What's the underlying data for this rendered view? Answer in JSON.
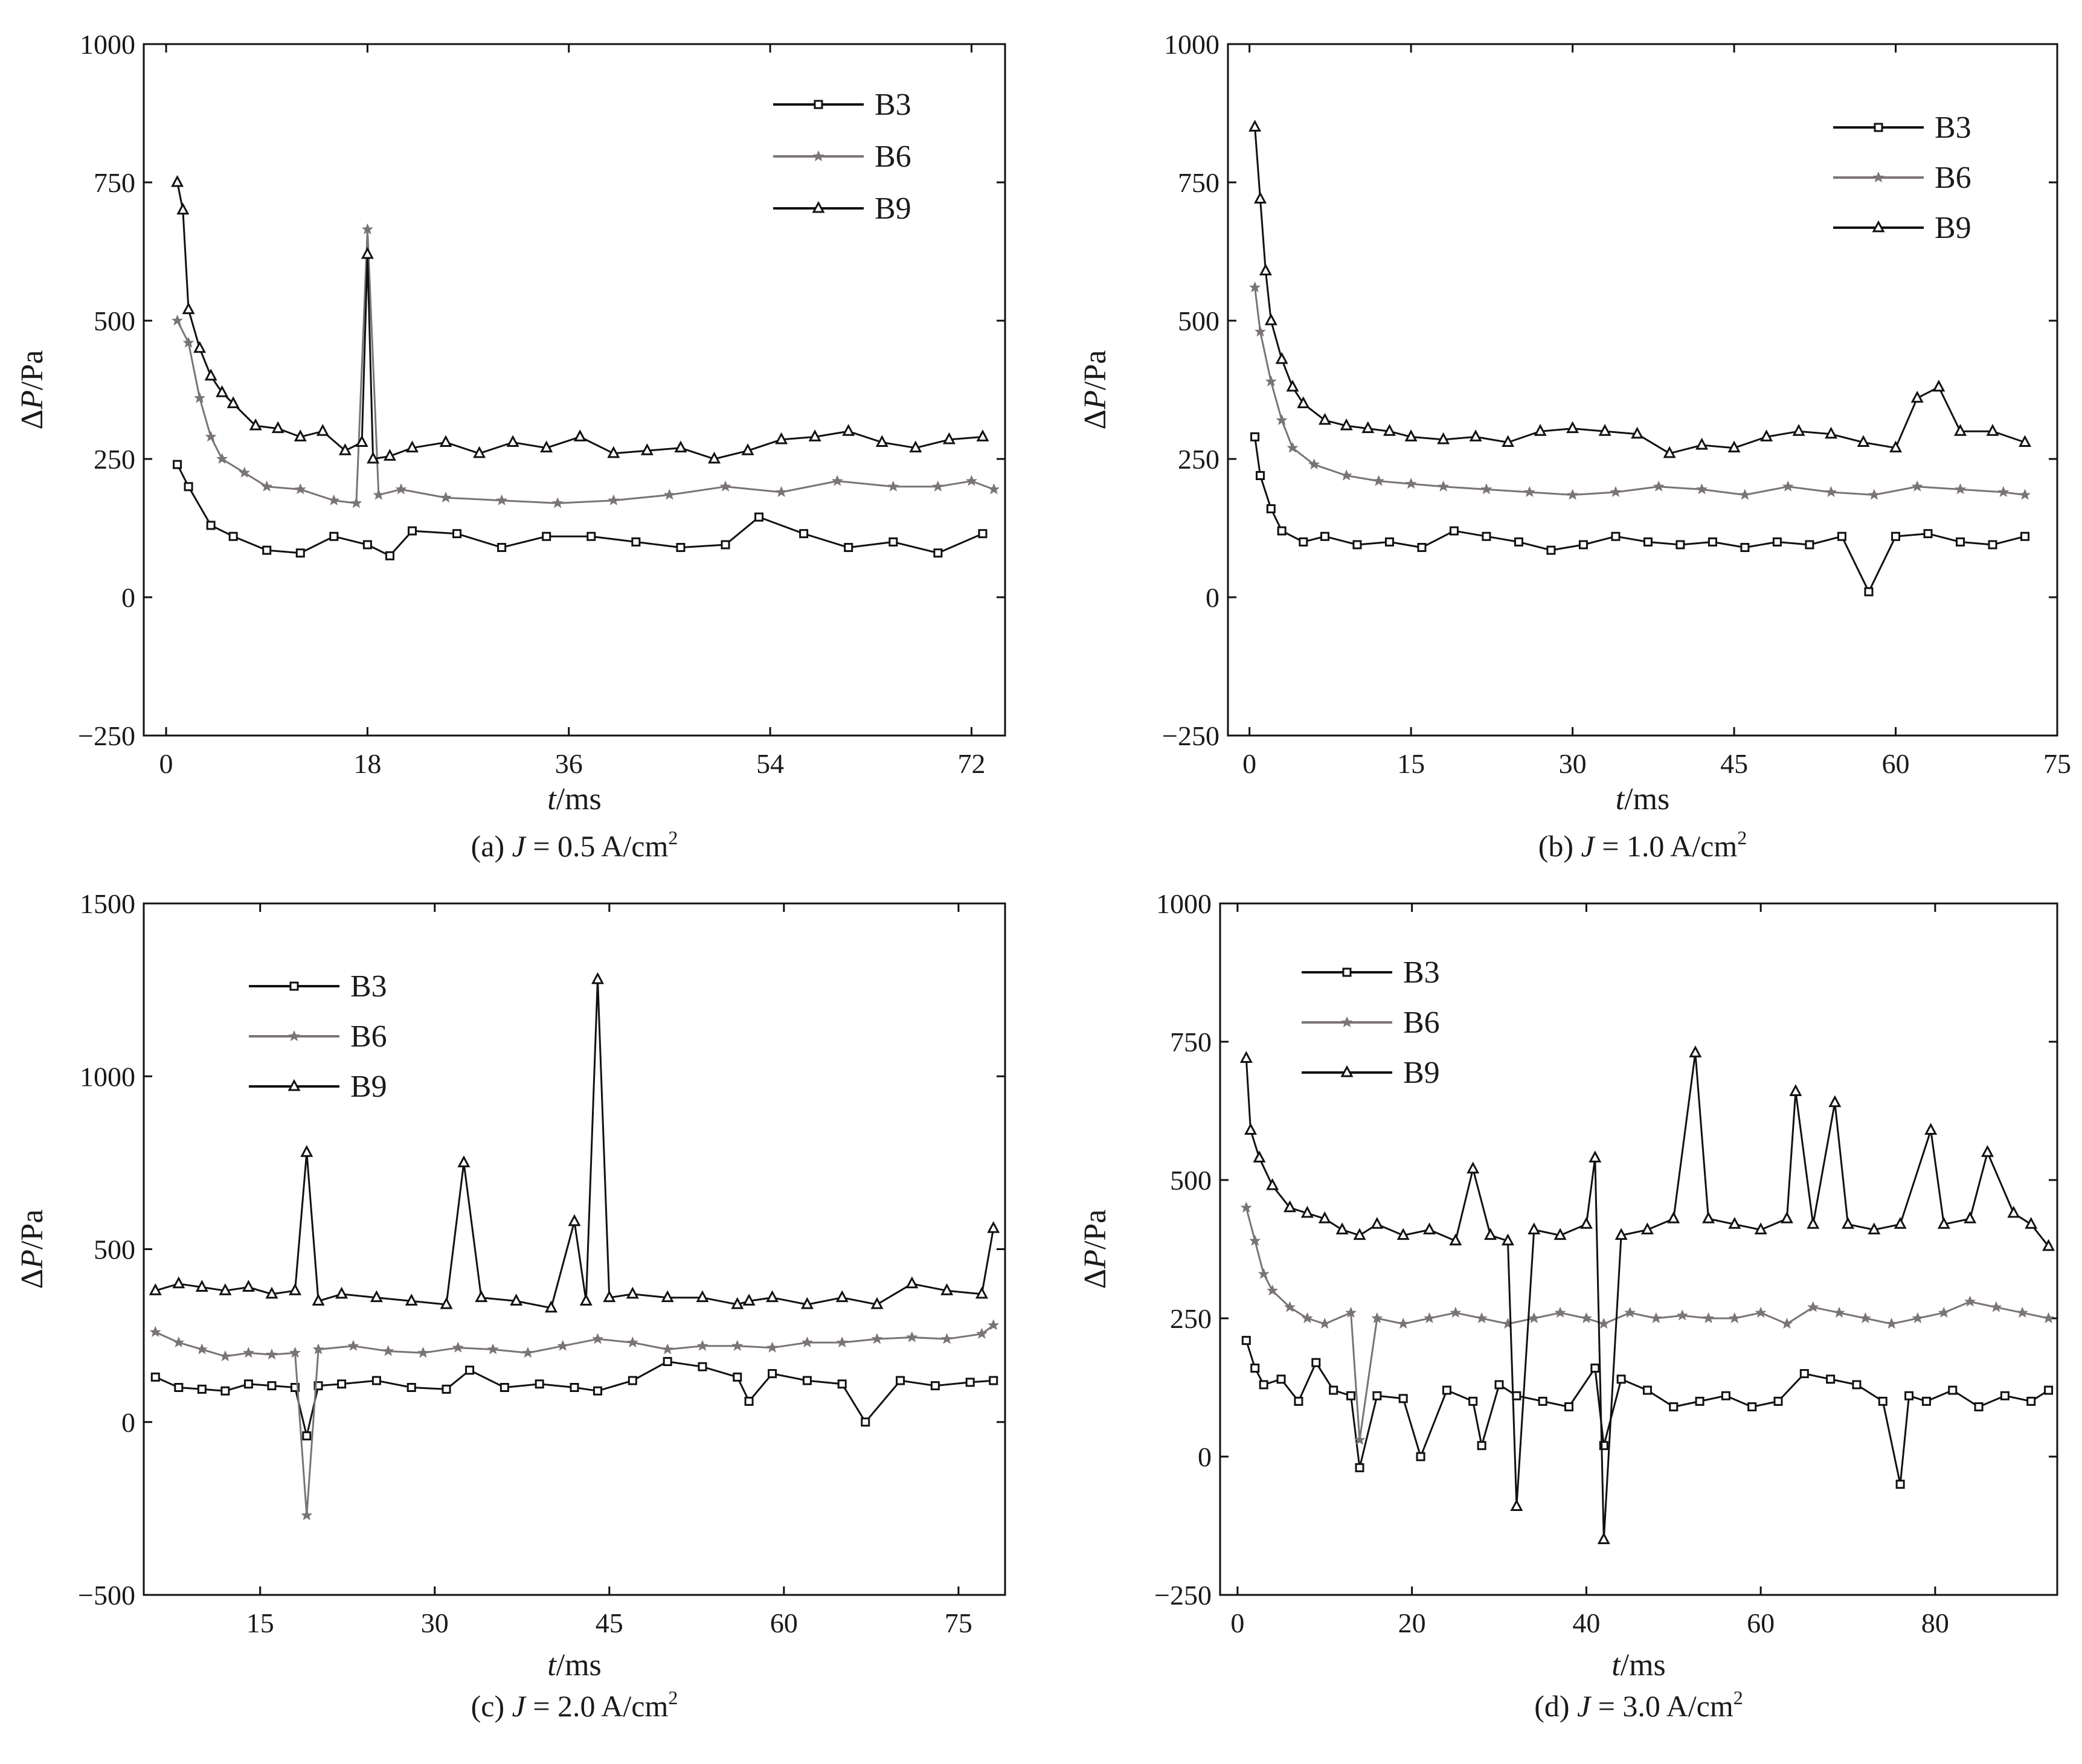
{
  "chart_data": [
    {
      "panel": "a",
      "type": "line",
      "caption": "(a) J = 0.5 A/cm²",
      "caption_parts": {
        "prefix": "(a) ",
        "var": "J",
        "rest": " = 0.5 A/cm",
        "sup": "2"
      },
      "xlabel": "t/ms",
      "ylabel": "ΔP/Pa",
      "xlim": [
        -2,
        75
      ],
      "ylim": [
        -250,
        1000
      ],
      "xticks": [
        0,
        18,
        36,
        54,
        72
      ],
      "yticks": [
        -250,
        0,
        250,
        500,
        750,
        1000
      ],
      "legend": [
        "B3",
        "B6",
        "B9"
      ],
      "legend_position": "top-right",
      "series": [
        {
          "name": "B3",
          "color": "#111111",
          "marker": "square",
          "x": [
            1,
            2,
            4,
            6,
            9,
            12,
            15,
            18,
            20,
            22,
            26,
            30,
            34,
            38,
            42,
            46,
            50,
            53,
            57,
            61,
            65,
            69,
            73
          ],
          "y": [
            240,
            200,
            130,
            110,
            85,
            80,
            110,
            95,
            75,
            120,
            115,
            90,
            110,
            110,
            100,
            90,
            95,
            145,
            115,
            90,
            100,
            80,
            115
          ]
        },
        {
          "name": "B6",
          "color": "#7a7474",
          "marker": "star",
          "x": [
            1,
            2,
            3,
            4,
            5,
            7,
            9,
            12,
            15,
            17,
            18,
            19,
            21,
            25,
            30,
            35,
            40,
            45,
            50,
            55,
            60,
            65,
            69,
            72,
            74
          ],
          "y": [
            500,
            460,
            360,
            290,
            250,
            225,
            200,
            195,
            175,
            170,
            665,
            185,
            195,
            180,
            175,
            170,
            175,
            185,
            200,
            190,
            210,
            200,
            200,
            210,
            195
          ]
        },
        {
          "name": "B9",
          "color": "#111111",
          "marker": "triangle",
          "x": [
            1,
            1.5,
            2,
            3,
            4,
            5,
            6,
            8,
            10,
            12,
            14,
            16,
            17.5,
            18,
            18.5,
            20,
            22,
            25,
            28,
            31,
            34,
            37,
            40,
            43,
            46,
            49,
            52,
            55,
            58,
            61,
            64,
            67,
            70,
            73
          ],
          "y": [
            750,
            700,
            520,
            450,
            400,
            370,
            350,
            310,
            305,
            290,
            300,
            265,
            280,
            620,
            250,
            255,
            270,
            280,
            260,
            280,
            270,
            290,
            260,
            265,
            270,
            250,
            265,
            285,
            290,
            300,
            280,
            270,
            285,
            290
          ]
        }
      ]
    },
    {
      "panel": "b",
      "type": "line",
      "caption": "(b) J = 1.0 A/cm²",
      "caption_parts": {
        "prefix": "(b) ",
        "var": "J",
        "rest": " = 1.0 A/cm",
        "sup": "2"
      },
      "xlabel": "t/ms",
      "ylabel": "ΔP/Pa",
      "xlim": [
        -2,
        75
      ],
      "ylim": [
        -250,
        1000
      ],
      "xticks": [
        0,
        15,
        30,
        45,
        60,
        75
      ],
      "yticks": [
        -250,
        0,
        250,
        500,
        750,
        1000
      ],
      "legend": [
        "B3",
        "B6",
        "B9"
      ],
      "legend_position": "top-right",
      "series": [
        {
          "name": "B3",
          "color": "#111111",
          "marker": "square",
          "x": [
            0.5,
            1,
            2,
            3,
            5,
            7,
            10,
            13,
            16,
            19,
            22,
            25,
            28,
            31,
            34,
            37,
            40,
            43,
            46,
            49,
            52,
            55,
            57.5,
            60,
            63,
            66,
            69,
            72
          ],
          "y": [
            290,
            220,
            160,
            120,
            100,
            110,
            95,
            100,
            90,
            120,
            110,
            100,
            85,
            95,
            110,
            100,
            95,
            100,
            90,
            100,
            95,
            110,
            10,
            110,
            115,
            100,
            95,
            110
          ]
        },
        {
          "name": "B6",
          "color": "#7a7474",
          "marker": "star",
          "x": [
            0.5,
            1,
            2,
            3,
            4,
            6,
            9,
            12,
            15,
            18,
            22,
            26,
            30,
            34,
            38,
            42,
            46,
            50,
            54,
            58,
            62,
            66,
            70,
            72
          ],
          "y": [
            560,
            480,
            390,
            320,
            270,
            240,
            220,
            210,
            205,
            200,
            195,
            190,
            185,
            190,
            200,
            195,
            185,
            200,
            190,
            185,
            200,
            195,
            190,
            185
          ]
        },
        {
          "name": "B9",
          "color": "#111111",
          "marker": "triangle",
          "x": [
            0.5,
            1,
            1.5,
            2,
            3,
            4,
            5,
            7,
            9,
            11,
            13,
            15,
            18,
            21,
            24,
            27,
            30,
            33,
            36,
            39,
            42,
            45,
            48,
            51,
            54,
            57,
            60,
            62,
            64,
            66,
            69,
            72
          ],
          "y": [
            850,
            720,
            590,
            500,
            430,
            380,
            350,
            320,
            310,
            305,
            300,
            290,
            285,
            290,
            280,
            300,
            305,
            300,
            295,
            260,
            275,
            270,
            290,
            300,
            295,
            280,
            270,
            360,
            380,
            300,
            300,
            280
          ]
        }
      ]
    },
    {
      "panel": "c",
      "type": "line",
      "caption": "(c) J = 2.0 A/cm²",
      "caption_parts": {
        "prefix": "(c) ",
        "var": "J",
        "rest": " = 2.0 A/cm",
        "sup": "2"
      },
      "xlabel": "t/ms",
      "ylabel": "ΔP/Pa",
      "xlim": [
        5,
        79
      ],
      "ylim": [
        -500,
        1500
      ],
      "xticks": [
        15,
        30,
        45,
        60,
        75
      ],
      "yticks": [
        -500,
        0,
        500,
        1000,
        1500
      ],
      "legend": [
        "B3",
        "B6",
        "B9"
      ],
      "legend_position": "top-left",
      "series": [
        {
          "name": "B3",
          "color": "#111111",
          "marker": "square",
          "x": [
            6,
            8,
            10,
            12,
            14,
            16,
            18,
            19,
            20,
            22,
            25,
            28,
            31,
            33,
            36,
            39,
            42,
            44,
            47,
            50,
            53,
            56,
            57,
            59,
            62,
            65,
            67,
            70,
            73,
            76,
            78
          ],
          "y": [
            130,
            100,
            95,
            90,
            110,
            105,
            100,
            -40,
            105,
            110,
            120,
            100,
            95,
            150,
            100,
            110,
            100,
            90,
            120,
            175,
            160,
            130,
            60,
            140,
            120,
            110,
            0,
            120,
            105,
            115,
            120
          ]
        },
        {
          "name": "B6",
          "color": "#7a7474",
          "marker": "star",
          "x": [
            6,
            8,
            10,
            12,
            14,
            16,
            18,
            19,
            20,
            23,
            26,
            29,
            32,
            35,
            38,
            41,
            44,
            47,
            50,
            53,
            56,
            59,
            62,
            65,
            68,
            71,
            74,
            77,
            78
          ],
          "y": [
            260,
            230,
            210,
            190,
            200,
            195,
            200,
            -270,
            210,
            220,
            205,
            200,
            215,
            210,
            200,
            220,
            240,
            230,
            210,
            220,
            220,
            215,
            230,
            230,
            240,
            245,
            240,
            255,
            280
          ]
        },
        {
          "name": "B9",
          "color": "#111111",
          "marker": "triangle",
          "x": [
            6,
            8,
            10,
            12,
            14,
            16,
            18,
            19,
            20,
            22,
            25,
            28,
            31,
            32.5,
            34,
            37,
            40,
            42,
            43,
            44,
            45,
            47,
            50,
            53,
            56,
            57,
            59,
            62,
            65,
            68,
            71,
            74,
            77,
            78
          ],
          "y": [
            380,
            400,
            390,
            380,
            390,
            370,
            380,
            780,
            350,
            370,
            360,
            350,
            340,
            750,
            360,
            350,
            330,
            580,
            350,
            1280,
            360,
            370,
            360,
            360,
            340,
            350,
            360,
            340,
            360,
            340,
            400,
            380,
            370,
            560
          ]
        }
      ]
    },
    {
      "panel": "d",
      "type": "line",
      "caption": "(d) J = 3.0 A/cm²",
      "caption_parts": {
        "prefix": "(d) ",
        "var": "J",
        "rest": " = 3.0 A/cm",
        "sup": "2"
      },
      "xlabel": "t/ms",
      "ylabel": "ΔP/Pa",
      "xlim": [
        -2,
        94
      ],
      "ylim": [
        -250,
        1000
      ],
      "xticks": [
        0,
        20,
        40,
        60,
        80
      ],
      "yticks": [
        -250,
        0,
        250,
        500,
        750,
        1000
      ],
      "legend": [
        "B3",
        "B6",
        "B9"
      ],
      "legend_position": "top-left",
      "series": [
        {
          "name": "B3",
          "color": "#111111",
          "marker": "square",
          "x": [
            1,
            2,
            3,
            5,
            7,
            9,
            11,
            13,
            14,
            16,
            19,
            21,
            24,
            27,
            28,
            30,
            32,
            35,
            38,
            41,
            42,
            44,
            47,
            50,
            53,
            56,
            59,
            62,
            65,
            68,
            71,
            74,
            76,
            77,
            79,
            82,
            85,
            88,
            91,
            93
          ],
          "y": [
            210,
            160,
            130,
            140,
            100,
            170,
            120,
            110,
            -20,
            110,
            105,
            0,
            120,
            100,
            20,
            130,
            110,
            100,
            90,
            160,
            20,
            140,
            120,
            90,
            100,
            110,
            90,
            100,
            150,
            140,
            130,
            100,
            -50,
            110,
            100,
            120,
            90,
            110,
            100,
            120
          ]
        },
        {
          "name": "B6",
          "color": "#7a7474",
          "marker": "star",
          "x": [
            1,
            2,
            3,
            4,
            6,
            8,
            10,
            13,
            14,
            16,
            19,
            22,
            25,
            28,
            31,
            34,
            37,
            40,
            42,
            45,
            48,
            51,
            54,
            57,
            60,
            63,
            66,
            69,
            72,
            75,
            78,
            81,
            84,
            87,
            90,
            93
          ],
          "y": [
            450,
            390,
            330,
            300,
            270,
            250,
            240,
            260,
            30,
            250,
            240,
            250,
            260,
            250,
            240,
            250,
            260,
            250,
            240,
            260,
            250,
            255,
            250,
            250,
            260,
            240,
            270,
            260,
            250,
            240,
            250,
            260,
            280,
            270,
            260,
            250
          ]
        },
        {
          "name": "B9",
          "color": "#111111",
          "marker": "triangle",
          "x": [
            1,
            1.5,
            2.5,
            4,
            6,
            8,
            10,
            12,
            14,
            16,
            19,
            22,
            25,
            27,
            29,
            31,
            32,
            34,
            37,
            40,
            41,
            42,
            44,
            47,
            50,
            52.5,
            54,
            57,
            60,
            63,
            64,
            66,
            68.5,
            70,
            73,
            76,
            79.5,
            81,
            84,
            86,
            89,
            91,
            93
          ],
          "y": [
            720,
            590,
            540,
            490,
            450,
            440,
            430,
            410,
            400,
            420,
            400,
            410,
            390,
            520,
            400,
            390,
            -90,
            410,
            400,
            420,
            540,
            -150,
            400,
            410,
            430,
            730,
            430,
            420,
            410,
            430,
            660,
            420,
            640,
            420,
            410,
            420,
            590,
            420,
            430,
            550,
            440,
            420,
            380
          ]
        }
      ]
    }
  ]
}
